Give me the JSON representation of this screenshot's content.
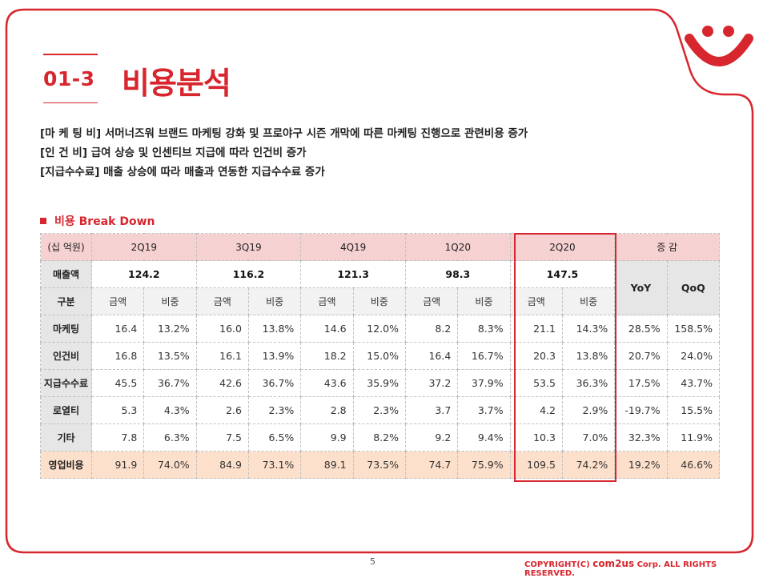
{
  "section": {
    "number": "01-3",
    "title": "비용분석"
  },
  "bullets": [
    "[마 케 팅 비] 서머너즈워 브랜드 마케팅 강화 및 프로야구 시즌 개막에 따른 마케팅 진행으로 관련비용 증가",
    "[인 건 비] 급여 상승 및 인센티브 지급에 따라 인건비 증가",
    "[지급수수료] 매출 상승에 따라 매출과 연동한 지급수수료 증가"
  ],
  "sub_heading": "비용 Break Down",
  "table": {
    "unit": "(십 억원)",
    "quarters": [
      "2Q19",
      "3Q19",
      "4Q19",
      "1Q20",
      "2Q20"
    ],
    "change_header": "증 감",
    "revenue_label": "매출액",
    "revenue": [
      "124.2",
      "116.2",
      "121.3",
      "98.3",
      "147.5"
    ],
    "yoy": "YoY",
    "qoq": "QoQ",
    "division_label": "구분",
    "amount_label": "금액",
    "share_label": "비중",
    "rows": [
      {
        "label": "마케팅",
        "cells": [
          "16.4",
          "13.2%",
          "16.0",
          "13.8%",
          "14.6",
          "12.0%",
          "8.2",
          "8.3%",
          "21.1",
          "14.3%",
          "28.5%",
          "158.5%"
        ]
      },
      {
        "label": "인건비",
        "cells": [
          "16.8",
          "13.5%",
          "16.1",
          "13.9%",
          "18.2",
          "15.0%",
          "16.4",
          "16.7%",
          "20.3",
          "13.8%",
          "20.7%",
          "24.0%"
        ]
      },
      {
        "label": "지급수수료",
        "cells": [
          "45.5",
          "36.7%",
          "42.6",
          "36.7%",
          "43.6",
          "35.9%",
          "37.2",
          "37.9%",
          "53.5",
          "36.3%",
          "17.5%",
          "43.7%"
        ]
      },
      {
        "label": "로열티",
        "cells": [
          "5.3",
          "4.3%",
          "2.6",
          "2.3%",
          "2.8",
          "2.3%",
          "3.7",
          "3.7%",
          "4.2",
          "2.9%",
          "-19.7%",
          "15.5%"
        ]
      },
      {
        "label": "기타",
        "cells": [
          "7.8",
          "6.3%",
          "7.5",
          "6.5%",
          "9.9",
          "8.2%",
          "9.2",
          "9.4%",
          "10.3",
          "7.0%",
          "32.3%",
          "11.9%"
        ]
      }
    ],
    "total": {
      "label": "영업비용",
      "cells": [
        "91.9",
        "74.0%",
        "84.9",
        "73.1%",
        "89.1",
        "73.5%",
        "74.7",
        "75.9%",
        "109.5",
        "74.2%",
        "19.2%",
        "46.6%"
      ]
    }
  },
  "footer": {
    "page": "5",
    "copyright_prefix": "COPYRIGHT(C) ",
    "brand": "com2us",
    "copyright_suffix": " Corp. ALL RIGHTS RESERVED."
  },
  "colors": {
    "accent": "#d7262e",
    "header_bg": "#f6d1d1",
    "total_bg": "#fde0cb",
    "label_bg": "#e6e6e6"
  }
}
